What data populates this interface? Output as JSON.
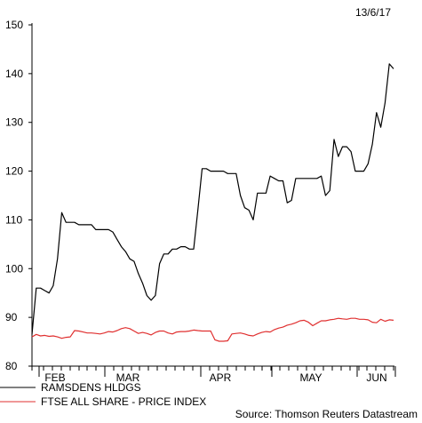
{
  "chart_data": {
    "type": "line",
    "date_label": "13/6/17",
    "source": "Source: Thomson Reuters Datastream",
    "ylim": [
      80,
      150
    ],
    "yticks": [
      80,
      90,
      100,
      110,
      120,
      130,
      140,
      150
    ],
    "x_month_labels": [
      "FEB",
      "MAR",
      "APR",
      "MAY",
      "JUN"
    ],
    "series": [
      {
        "name": "RAMSDENS HLDGS",
        "color": "#000000",
        "values": [
          86.5,
          96,
          96,
          95.5,
          95,
          96.5,
          102,
          111.5,
          109.5,
          109.5,
          109.5,
          109,
          109,
          109,
          109,
          108,
          108,
          108,
          108,
          107.5,
          106,
          104.5,
          103.5,
          102,
          101.5,
          99,
          97,
          94.5,
          93.5,
          94.5,
          101,
          103,
          103,
          104,
          104,
          104.5,
          104.5,
          104,
          104,
          112,
          120.5,
          120.5,
          120,
          120,
          120,
          120,
          119.5,
          119.5,
          119.5,
          115,
          112.5,
          112,
          110,
          115.5,
          115.5,
          115.5,
          119,
          118.5,
          118,
          118,
          113.5,
          114,
          118.5,
          118.5,
          118.5,
          118.5,
          118.5,
          118.5,
          119,
          115,
          116,
          126.5,
          123,
          125,
          125,
          124,
          120,
          120,
          120,
          121.5,
          125.5,
          132,
          129,
          134,
          142,
          141
        ]
      },
      {
        "name": "FTSE ALL SHARE - PRICE INDEX",
        "color": "#e03030",
        "values": [
          86,
          86.5,
          86.2,
          86.3,
          86.1,
          86.2,
          86,
          85.7,
          85.9,
          86,
          87.3,
          87.2,
          87,
          86.8,
          86.8,
          86.7,
          86.6,
          86.8,
          87.1,
          87,
          87.3,
          87.7,
          87.9,
          87.7,
          87.2,
          86.7,
          86.9,
          86.7,
          86.4,
          86.9,
          87.2,
          87.2,
          86.8,
          86.6,
          87.0,
          87.1,
          87.1,
          87.2,
          87.4,
          87.3,
          87.2,
          87.2,
          87.2,
          85.4,
          85.1,
          85.1,
          85.2,
          86.6,
          86.7,
          86.8,
          86.6,
          86.3,
          86.2,
          86.6,
          86.9,
          87.1,
          87.0,
          87.5,
          87.8,
          88.0,
          88.4,
          88.6,
          88.9,
          89.3,
          89.4,
          89.0,
          88.3,
          88.8,
          89.3,
          89.3,
          89.5,
          89.6,
          89.8,
          89.7,
          89.6,
          89.8,
          89.8,
          89.6,
          89.6,
          89.5,
          89.0,
          88.9,
          89.6,
          89.2,
          89.5,
          89.4
        ]
      }
    ]
  }
}
